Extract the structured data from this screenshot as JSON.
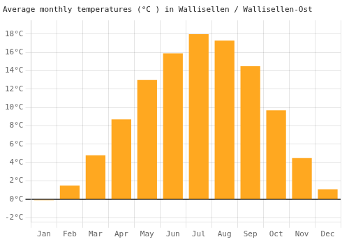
{
  "chart_data": {
    "type": "bar",
    "title": "Average monthly temperatures (°C ) in Wallisellen / Wallisellen-Ost",
    "categories": [
      "Jan",
      "Feb",
      "Mar",
      "Apr",
      "May",
      "Jun",
      "Jul",
      "Aug",
      "Sep",
      "Oct",
      "Nov",
      "Dec"
    ],
    "values": [
      -0.1,
      1.5,
      4.8,
      8.7,
      13.0,
      15.9,
      18.0,
      17.3,
      14.5,
      9.7,
      4.5,
      1.1
    ],
    "color": "#FFA820",
    "ylim": [
      -2.5,
      19.5
    ],
    "yticks": [
      {
        "value": -2,
        "label": "-2°C"
      },
      {
        "value": 0,
        "label": "0°C"
      },
      {
        "value": 2,
        "label": "2°C"
      },
      {
        "value": 4,
        "label": "4°C"
      },
      {
        "value": 6,
        "label": "6°C"
      },
      {
        "value": 8,
        "label": "8°C"
      },
      {
        "value": 10,
        "label": "10°C"
      },
      {
        "value": 12,
        "label": "12°C"
      },
      {
        "value": 14,
        "label": "14°C"
      },
      {
        "value": 16,
        "label": "16°C"
      },
      {
        "value": 18,
        "label": "18°C"
      }
    ],
    "grid": true
  }
}
